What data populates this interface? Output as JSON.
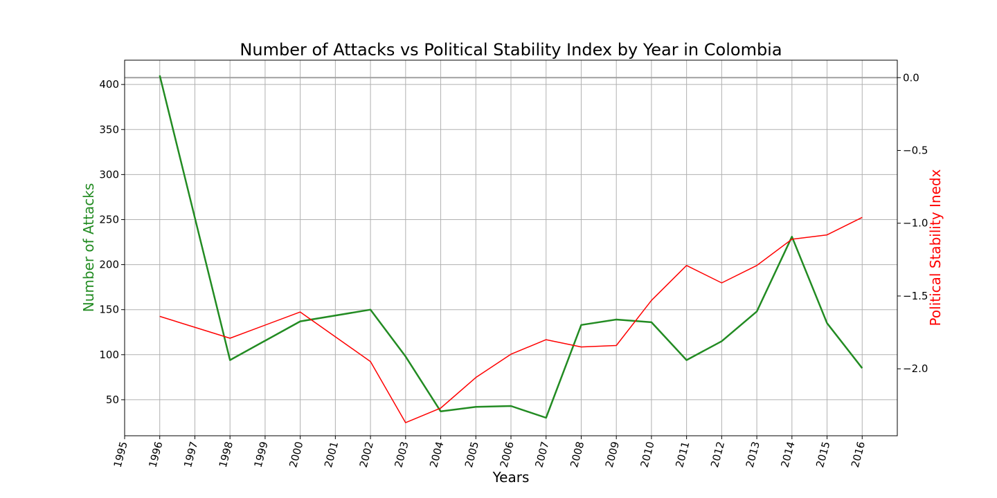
{
  "chart_data": {
    "type": "line",
    "title": "Number of Attacks vs Political Stability Index by Year in Colombia",
    "xlabel": "Years",
    "ylabel_left": "Number of Attacks",
    "ylabel_right": "Political Stability Inedx",
    "x_ticks": [
      "1995",
      "1996",
      "1997",
      "1998",
      "1999",
      "2000",
      "2001",
      "2002",
      "2003",
      "2004",
      "2005",
      "2006",
      "2007",
      "2008",
      "2009",
      "2010",
      "2011",
      "2012",
      "2013",
      "2014",
      "2015",
      "2016"
    ],
    "xlim": [
      1995,
      2017
    ],
    "ylim_left": [
      10,
      427
    ],
    "ylim_right": [
      -2.46,
      0.12
    ],
    "yticks_left": [
      50,
      100,
      150,
      200,
      250,
      300,
      350,
      400
    ],
    "yticks_right": [
      -2.0,
      -1.5,
      -1.0,
      -0.5,
      0.0
    ],
    "yticks_right_labels": [
      "−2.0",
      "−1.5",
      "−1.0",
      "−0.5",
      "0.0"
    ],
    "grid": true,
    "series": [
      {
        "axis": "left",
        "color": "#228B22",
        "x": [
          1996,
          1998,
          2000,
          2002,
          2003,
          2004,
          2005,
          2006,
          2007,
          2008,
          2009,
          2010,
          2011,
          2012,
          2013,
          2014,
          2015,
          2016
        ],
        "values": [
          410,
          94,
          137,
          150,
          98,
          37,
          42,
          43,
          30,
          133,
          139,
          136,
          94,
          115,
          148,
          231,
          135,
          85
        ]
      },
      {
        "axis": "right",
        "color": "#ff0000",
        "x": [
          1996,
          1998,
          2000,
          2002,
          2003,
          2004,
          2005,
          2006,
          2007,
          2008,
          2009,
          2010,
          2011,
          2012,
          2013,
          2014,
          2015,
          2016
        ],
        "values": [
          -1.64,
          -1.79,
          -1.61,
          -1.95,
          -2.37,
          -2.27,
          -2.06,
          -1.9,
          -1.8,
          -1.85,
          -1.84,
          -1.53,
          -1.29,
          -1.41,
          -1.29,
          -1.11,
          -1.08,
          -0.96
        ]
      }
    ],
    "reference_lines": [
      {
        "axis": "right",
        "y": 0.0,
        "color": "#a0a0a0"
      }
    ]
  }
}
